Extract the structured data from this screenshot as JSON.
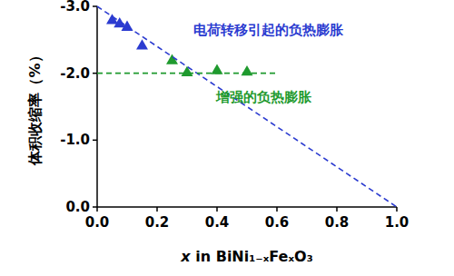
{
  "chart_data": {
    "type": "scatter",
    "x_label": "x in BiNi₁₋ₓFeₓO₃",
    "y_label": "体积收缩率（%）",
    "xlim": [
      0.0,
      1.0
    ],
    "xticks": [
      {
        "value": 0,
        "label": "0.0"
      },
      {
        "value": 0.2,
        "label": "0.2"
      },
      {
        "value": 0.4,
        "label": "0.4"
      },
      {
        "value": 0.6,
        "label": "0.6"
      },
      {
        "value": 0.8,
        "label": "0.8"
      },
      {
        "value": 1,
        "label": "1.0"
      }
    ],
    "ylim": [
      0.0,
      -3.0
    ],
    "yticks": [
      {
        "value": 0,
        "label": "0.0"
      },
      {
        "value": -1,
        "label": "-1.0"
      },
      {
        "value": -2,
        "label": "-2.0"
      },
      {
        "value": -3,
        "label": "-3.0"
      }
    ],
    "grid": false,
    "series": [
      {
        "color": "#2b3bd0",
        "marker": "triangle",
        "x": [
          0.05,
          0.075,
          0.1,
          0.15
        ],
        "values": [
          -2.8,
          -2.75,
          -2.7,
          -2.42
        ]
      },
      {
        "color": "#1f9a2e",
        "marker": "triangle",
        "x": [
          0.25,
          0.3,
          0.4,
          0.5
        ],
        "values": [
          -2.2,
          -2.02,
          -2.05,
          -2.03
        ]
      },
      {
        "name": "电荷转移引起的负热膨胀",
        "type": "line",
        "line_style": "dashed",
        "color": "#2b3bd0",
        "x": [
          0.0,
          1.0
        ],
        "values": [
          -3.0,
          0.0
        ]
      },
      {
        "name": "增强的负热膨胀",
        "type": "line",
        "line_style": "dashed",
        "color": "#1f9a2e",
        "x": [
          0.0,
          0.6
        ],
        "values": [
          -2.0,
          -2.0
        ]
      }
    ]
  }
}
